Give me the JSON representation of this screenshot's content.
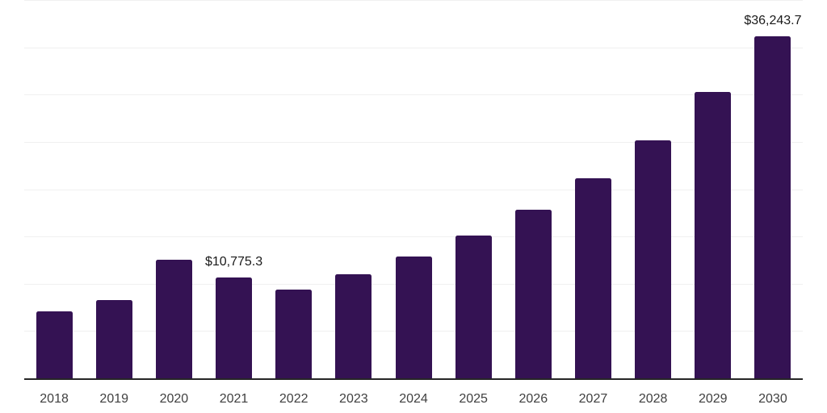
{
  "chart_data": {
    "type": "bar",
    "title": "",
    "xlabel": "",
    "ylabel": "",
    "categories": [
      "2018",
      "2019",
      "2020",
      "2021",
      "2022",
      "2023",
      "2024",
      "2025",
      "2026",
      "2027",
      "2028",
      "2029",
      "2030"
    ],
    "values": [
      7180,
      8320,
      12650,
      10775.3,
      9490,
      11110,
      13000,
      15220,
      17950,
      21260,
      25250,
      30330,
      36243.7
    ],
    "point_labels": [
      "",
      "",
      "",
      "$10,775.3",
      "",
      "",
      "",
      "",
      "",
      "",
      "",
      "",
      "$36,243.7"
    ],
    "ylim": [
      0,
      40000
    ],
    "gridline_step": 5000,
    "grid": "horizontal-only",
    "legend_position": "none",
    "y_tick_labels_visible": false,
    "colors": {
      "bar": "#341253",
      "gridline": "#f0f0f0",
      "axis_line": "#262626",
      "x_tick_label": "#404040",
      "data_label": "#1a1a1a",
      "background": "#ffffff"
    }
  }
}
